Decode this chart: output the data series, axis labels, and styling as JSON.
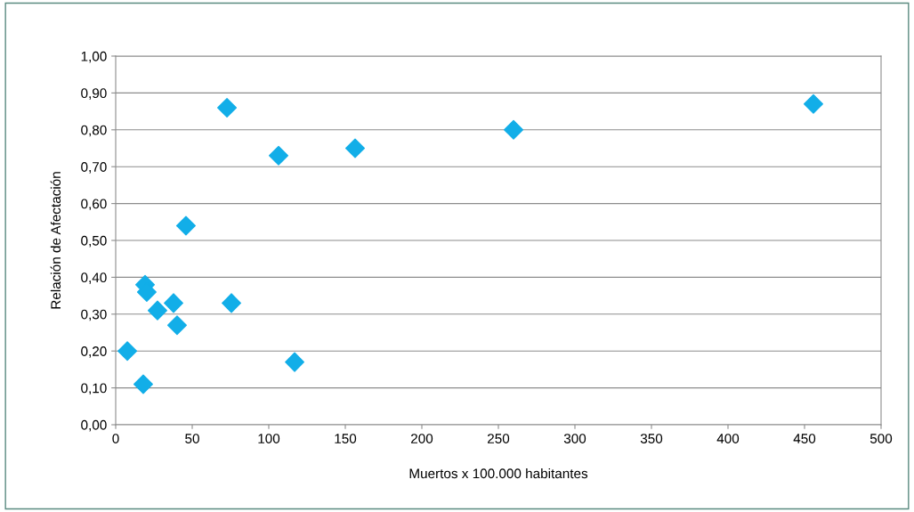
{
  "chart_data": {
    "type": "scatter",
    "xlabel": "Muertos x 100.000 habitantes",
    "ylabel": "Relación de Afectación",
    "x": [
      7.6,
      18,
      19.2,
      20.3,
      27.3,
      37.8,
      40.1,
      45.9,
      72.7,
      75.6,
      106.4,
      116.9,
      156.4,
      259.9,
      455.8
    ],
    "series": [
      {
        "color": "#12aee8",
        "values": [
          0.2,
          0.11,
          0.38,
          0.36,
          0.31,
          0.33,
          0.27,
          0.54,
          0.86,
          0.33,
          0.73,
          0.17,
          0.75,
          0.8,
          0.87
        ]
      }
    ],
    "marker": "diamond",
    "grid": "y",
    "legend": false,
    "xlim": [
      0,
      500
    ],
    "xticks": [
      0,
      50,
      100,
      150,
      200,
      250,
      300,
      350,
      400,
      450,
      500
    ],
    "ylim": [
      0,
      1
    ],
    "yticks": [
      {
        "value": 0,
        "label": "0,00"
      },
      {
        "value": 0.1,
        "label": "0,10"
      },
      {
        "value": 0.2,
        "label": "0,20"
      },
      {
        "value": 0.3,
        "label": "0,30"
      },
      {
        "value": 0.4,
        "label": "0,40"
      },
      {
        "value": 0.5,
        "label": "0,50"
      },
      {
        "value": 0.6,
        "label": "0,60"
      },
      {
        "value": 0.7,
        "label": "0,70"
      },
      {
        "value": 0.8,
        "label": "0,80"
      },
      {
        "value": 0.9,
        "label": "0,90"
      },
      {
        "value": 1,
        "label": "1,00"
      }
    ]
  }
}
